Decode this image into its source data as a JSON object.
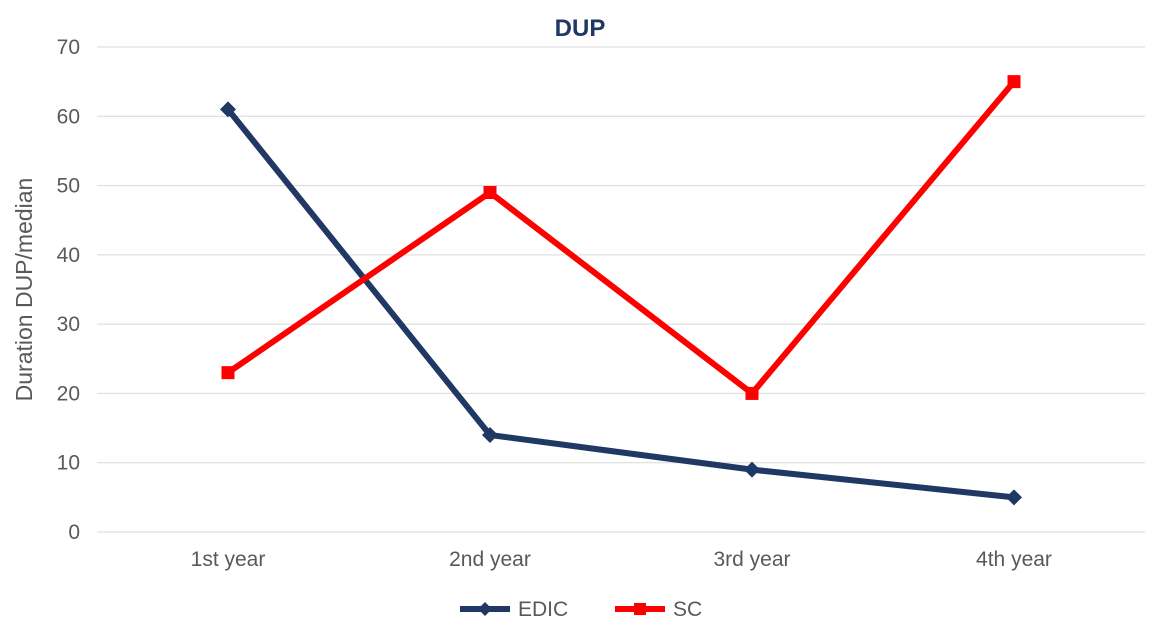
{
  "chart_data": {
    "type": "line",
    "title": "DUP",
    "xlabel": "",
    "ylabel": "Duration DUP/median",
    "categories": [
      "1st year",
      "2nd year",
      "3rd year",
      "4th year"
    ],
    "ylim": [
      0,
      70
    ],
    "yticks": [
      0,
      10,
      20,
      30,
      40,
      50,
      60,
      70
    ],
    "grid": true,
    "legend": "bottom",
    "series": [
      {
        "name": "EDIC",
        "values": [
          61,
          14,
          9,
          5
        ],
        "color": "#1f3864",
        "marker": "diamond"
      },
      {
        "name": "SC",
        "values": [
          23,
          49,
          20,
          65
        ],
        "color": "#ff0000",
        "marker": "square"
      }
    ],
    "title_color": "#1f3864"
  }
}
